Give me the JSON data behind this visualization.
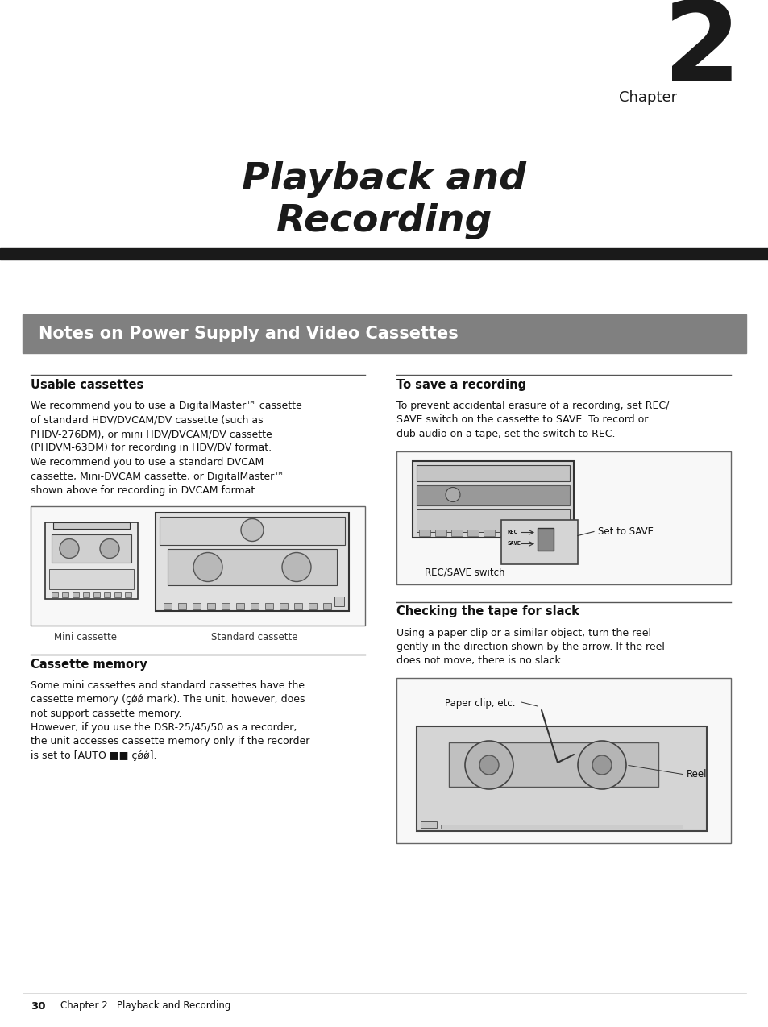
{
  "bg_color": "#ffffff",
  "chapter_number": "2",
  "chapter_label": "Chapter",
  "title_line1": "Playback and",
  "title_line2": "Recording",
  "section_header": "Notes on Power Supply and Video Cassettes",
  "section_header_bg": "#808080",
  "section_header_color": "#ffffff",
  "usable_cassettes_title": "Usable cassettes",
  "cassette_memory_title": "Cassette memory",
  "to_save_title": "To save a recording",
  "checking_tape_title": "Checking the tape for slack",
  "usable_text_lines": [
    "We recommend you to use a DigitalMaster™ cassette",
    "of standard HDV/DVCAM/DV cassette (such as",
    "PHDV-276DM), or mini HDV/DVCAM/DV cassette",
    "(PHDVM-63DM) for recording in HDV/DV format.",
    "We recommend you to use a standard DVCAM",
    "cassette, Mini-DVCAM cassette, or DigitalMaster™",
    "shown above for recording in DVCAM format."
  ],
  "cassette_memory_lines": [
    "Some mini cassettes and standard cassettes have the",
    "cassette memory (¢ǿǿ mark). The unit, however, does",
    "not support cassette memory.",
    "However, if you use the DSR-25/45/50 as a recorder,",
    "the unit accesses cassette memory only if the recorder",
    "is set to [AUTO ■■ ¢ǿǿ]."
  ],
  "to_save_lines": [
    "To prevent accidental erasure of a recording, set REC/",
    "SAVE switch on the cassette to SAVE. To record or",
    "dub audio on a tape, set the switch to REC."
  ],
  "checking_tape_lines": [
    "Using a paper clip or a similar object, turn the reel",
    "gently in the direction shown by the arrow. If the reel",
    "does not move, there is no slack."
  ],
  "mini_cassette_label": "Mini cassette",
  "standard_cassette_label": "Standard cassette",
  "rec_save_switch_label": "REC/SAVE switch",
  "set_to_save_label": "Set to SAVE.",
  "paper_clip_label": "Paper clip, etc.",
  "reel_label": "Reel",
  "footer_page": "30",
  "footer_text": "Chapter 2   Playback and Recording",
  "dark_bar_color": "#1a1a1a",
  "text_color": "#111111",
  "line_color": "#555555"
}
